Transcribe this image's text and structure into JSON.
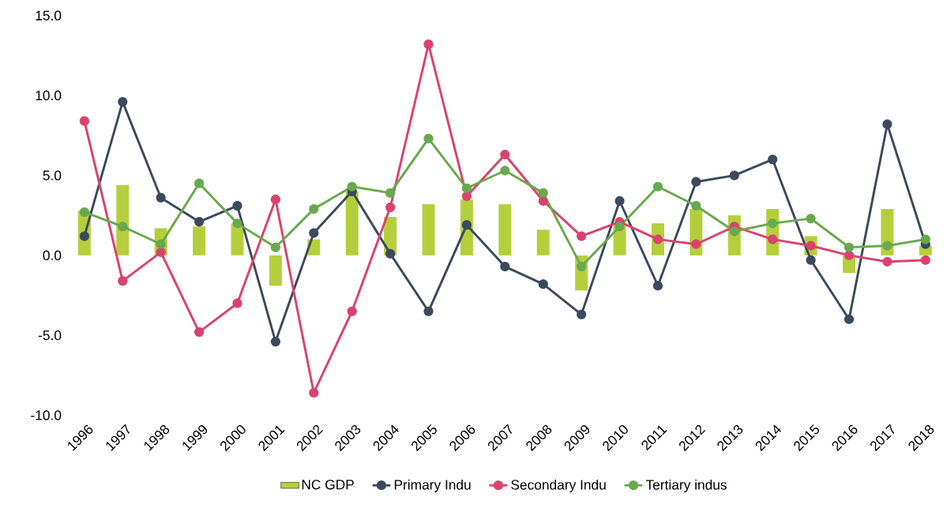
{
  "chart_data": {
    "type": "line",
    "categories": [
      "1996",
      "1997",
      "1998",
      "1999",
      "2000",
      "2001",
      "2002",
      "2003",
      "2004",
      "2005",
      "2006",
      "2007",
      "2008",
      "2009",
      "2010",
      "2011",
      "2012",
      "2013",
      "2014",
      "2015",
      "2016",
      "2017",
      "2018"
    ],
    "series": [
      {
        "name": "NC GDP",
        "type": "bar",
        "color": "#b5cf3c",
        "values": [
          2.8,
          4.4,
          1.7,
          1.8,
          2.0,
          -1.9,
          1.0,
          4.0,
          2.4,
          3.2,
          3.5,
          3.2,
          1.6,
          -2.2,
          2.0,
          2.0,
          2.9,
          2.5,
          2.9,
          1.2,
          -1.1,
          2.9,
          0.6
        ]
      },
      {
        "name": "Primary Indu",
        "color": "#3b4a5c",
        "values": [
          1.2,
          9.6,
          3.6,
          2.1,
          3.1,
          -5.4,
          1.4,
          4.0,
          0.1,
          -3.5,
          1.9,
          -0.7,
          -1.8,
          -3.7,
          3.4,
          -1.9,
          4.6,
          5.0,
          6.0,
          -0.3,
          -4.0,
          8.2,
          0.7
        ]
      },
      {
        "name": "Secondary Indu",
        "color": "#d9436e",
        "values": [
          8.4,
          -1.6,
          0.2,
          -4.8,
          -3.0,
          3.5,
          -8.6,
          -3.5,
          3.0,
          13.2,
          3.7,
          6.3,
          3.4,
          1.2,
          2.1,
          1.0,
          0.7,
          1.8,
          1.0,
          0.6,
          0.0,
          -0.4,
          -0.3
        ]
      },
      {
        "name": "Tertiary indus",
        "color": "#6aa84f",
        "values": [
          2.7,
          1.8,
          0.7,
          4.5,
          2.0,
          0.5,
          2.9,
          4.3,
          3.9,
          7.3,
          4.2,
          5.3,
          3.9,
          -0.7,
          1.8,
          4.3,
          3.1,
          1.5,
          2.0,
          2.3,
          0.5,
          0.6,
          1.0
        ]
      }
    ],
    "ylim": [
      -10,
      15
    ],
    "yticks": [
      {
        "value": -10,
        "label": "-10.0"
      },
      {
        "value": -5,
        "label": "-5.0"
      },
      {
        "value": 0,
        "label": "0.0"
      },
      {
        "value": 5,
        "label": "5.0"
      },
      {
        "value": 10,
        "label": "10.0"
      },
      {
        "value": 15,
        "label": "15.0"
      }
    ],
    "marker": "circle",
    "legend": "bottom",
    "grid": false
  }
}
